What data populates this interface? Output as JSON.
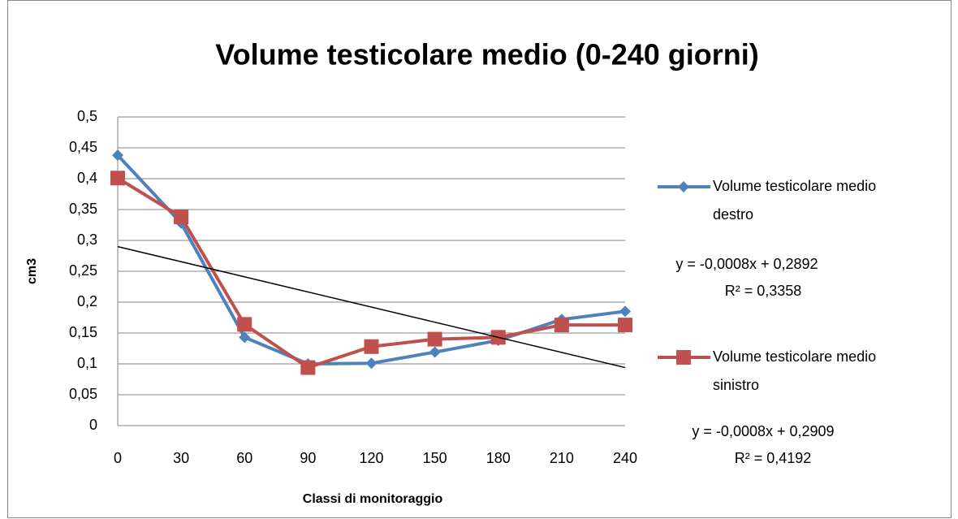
{
  "chart_data": {
    "type": "line",
    "title": "Volume testicolare medio (0-240 giorni)",
    "x_label": "Classi di monitoraggio",
    "y_label": "cm3",
    "categories": [
      "0",
      "30",
      "60",
      "90",
      "120",
      "150",
      "180",
      "210",
      "240"
    ],
    "series": [
      {
        "name": "Volume testicolare medio destro",
        "color": "#4f81bd",
        "marker": "diamond",
        "values": [
          0.438,
          0.328,
          0.143,
          0.1,
          0.101,
          0.119,
          0.138,
          0.172,
          0.185
        ]
      },
      {
        "name": "Volume testicolare medio sinistro",
        "color": "#c0504d",
        "marker": "square",
        "values": [
          0.401,
          0.338,
          0.164,
          0.094,
          0.128,
          0.14,
          0.143,
          0.163,
          0.163
        ]
      }
    ],
    "trendline": {
      "color": "#000000",
      "values": [
        0.29,
        0.094
      ]
    },
    "annotations": [
      "y = -0,0008x + 0,2892",
      "R² = 0,3358",
      "y = -0,0008x + 0,2909",
      "R² = 0,4192"
    ],
    "ylim": [
      0,
      0.5
    ],
    "yticks": [
      0,
      {
        "value": 0.05,
        "label": "0,05"
      },
      {
        "value": 0.1,
        "label": "0,1"
      },
      {
        "value": 0.15,
        "label": "0,15"
      },
      {
        "value": 0.2,
        "label": "0,2"
      },
      {
        "value": 0.25,
        "label": "0,25"
      },
      {
        "value": 0.3,
        "label": "0,3"
      },
      {
        "value": 0.35,
        "label": "0,35"
      },
      {
        "value": 0.4,
        "label": "0,4"
      },
      {
        "value": 0.45,
        "label": "0,45"
      },
      {
        "value": 0.5,
        "label": "0,5"
      }
    ],
    "grid": true,
    "legend": "right"
  }
}
